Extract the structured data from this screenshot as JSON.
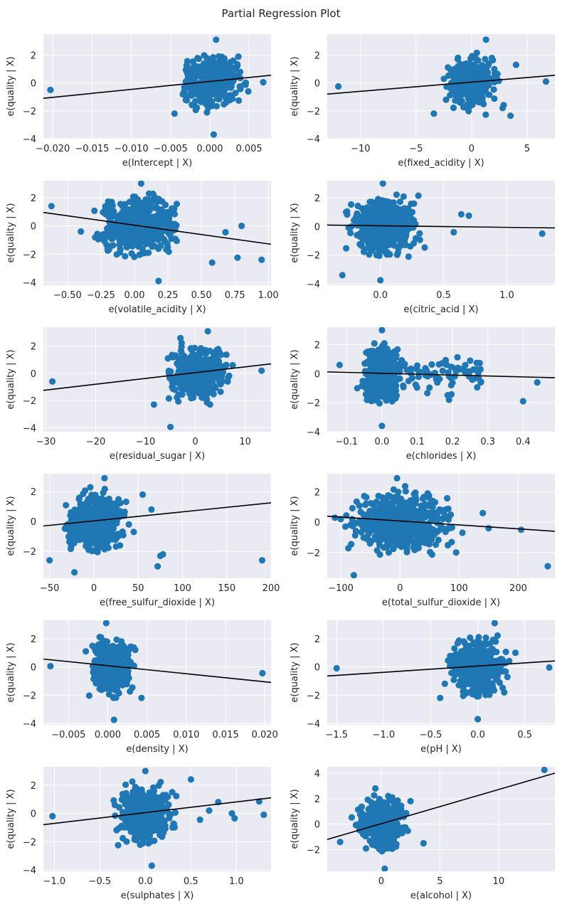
{
  "figure_title": "Partial Regression Plot",
  "colors": {
    "panel_bg": "#eaeaf2",
    "grid": "#ffffff",
    "point": "#1f77b4",
    "fit_line": "#000000",
    "text": "#262626"
  },
  "chart_data": [
    {
      "type": "scatter",
      "xlabel": "e(Intercept | X)",
      "ylabel": "e(quality | X)",
      "xlim": [
        -0.0212,
        0.0078
      ],
      "ylim": [
        -4,
        3.5
      ],
      "xticks": [
        -0.02,
        -0.015,
        -0.01,
        -0.005,
        0.0,
        0.005
      ],
      "xtick_labels": [
        "−0.020",
        "−0.015",
        "−0.010",
        "−0.005",
        "0.000",
        "0.005"
      ],
      "yticks": [
        -4,
        -2,
        0,
        2
      ],
      "ytick_labels": [
        "−4",
        "−2",
        "0",
        "2"
      ],
      "fit_line": {
        "x": [
          -0.0212,
          0.0078
        ],
        "y": [
          -1.1,
          0.55
        ]
      },
      "cluster": {
        "cx": 0.0005,
        "sx": 0.0017,
        "cy": 0,
        "sy": 0.9,
        "n": 320
      },
      "outliers": [
        [
          -0.0203,
          -0.5
        ],
        [
          0.0068,
          0.05
        ],
        [
          -0.0045,
          -2.2
        ],
        [
          -0.0025,
          0.4
        ],
        [
          0.003,
          1.6
        ],
        [
          0.0005,
          -3.7
        ],
        [
          0.0008,
          3.1
        ]
      ]
    },
    {
      "type": "scatter",
      "xlabel": "e(fixed_acidity | X)",
      "ylabel": "e(quality | X)",
      "xlim": [
        -13,
        7.5
      ],
      "ylim": [
        -4,
        3.5
      ],
      "xticks": [
        -10,
        -5,
        0,
        5
      ],
      "xtick_labels": [
        "−10",
        "−5",
        "0",
        "5"
      ],
      "yticks": [
        -4,
        -2,
        0,
        2
      ],
      "ytick_labels": [
        "−4",
        "−2",
        "0",
        "2"
      ],
      "fit_line": {
        "x": [
          -13,
          7.5
        ],
        "y": [
          -0.8,
          0.55
        ]
      },
      "cluster": {
        "cx": 0,
        "sx": 1.0,
        "cy": 0,
        "sy": 0.9,
        "n": 320
      },
      "outliers": [
        [
          -12,
          -0.25
        ],
        [
          6.7,
          0.1
        ],
        [
          4,
          1.3
        ],
        [
          -3.4,
          -2.2
        ],
        [
          3.5,
          -2.35
        ],
        [
          2.8,
          -1.8
        ],
        [
          1.3,
          3.1
        ]
      ]
    },
    {
      "type": "scatter",
      "xlabel": "e(volatile_acidity | X)",
      "ylabel": "e(quality | X)",
      "xlim": [
        -0.68,
        1.02
      ],
      "ylim": [
        -4.2,
        3.2
      ],
      "xticks": [
        -0.5,
        -0.25,
        0.0,
        0.25,
        0.5,
        0.75,
        1.0
      ],
      "xtick_labels": [
        "−0.50",
        "−0.25",
        "0.00",
        "0.25",
        "0.50",
        "0.75",
        "1.00"
      ],
      "yticks": [
        -4,
        -2,
        0,
        2
      ],
      "ytick_labels": [
        "−4",
        "−2",
        "0",
        "2"
      ],
      "fit_line": {
        "x": [
          -0.68,
          1.02
        ],
        "y": [
          0.95,
          -1.3
        ]
      },
      "cluster": {
        "cx": 0.02,
        "sx": 0.13,
        "cy": 0,
        "sy": 0.9,
        "n": 480
      },
      "outliers": [
        [
          -0.62,
          1.4
        ],
        [
          0.95,
          -2.4
        ],
        [
          0.77,
          -2.25
        ],
        [
          0.8,
          0.0
        ],
        [
          0.58,
          -2.6
        ],
        [
          0.68,
          -0.45
        ],
        [
          -0.4,
          -0.4
        ],
        [
          0.18,
          -3.9
        ],
        [
          0.05,
          3.0
        ]
      ]
    },
    {
      "type": "scatter",
      "xlabel": "e(citric_acid | X)",
      "ylabel": "e(quality | X)",
      "xlim": [
        -0.42,
        1.38
      ],
      "ylim": [
        -4.1,
        3.2
      ],
      "xticks": [
        0.0,
        0.5,
        1.0
      ],
      "xtick_labels": [
        "0.0",
        "0.5",
        "1.0"
      ],
      "yticks": [
        -4,
        -2,
        0,
        2
      ],
      "ytick_labels": [
        "−4",
        "−2",
        "0",
        "2"
      ],
      "fit_line": {
        "x": [
          -0.42,
          1.38
        ],
        "y": [
          0.1,
          -0.1
        ]
      },
      "cluster": {
        "cx": 0.02,
        "sx": 0.12,
        "cy": 0,
        "sy": 0.9,
        "n": 480
      },
      "outliers": [
        [
          1.28,
          -0.5
        ],
        [
          0.64,
          0.85
        ],
        [
          0.7,
          0.75
        ],
        [
          0.58,
          -0.4
        ],
        [
          -0.3,
          -3.4
        ],
        [
          0.0,
          -3.75
        ],
        [
          0.02,
          3.0
        ]
      ]
    },
    {
      "type": "scatter",
      "xlabel": "e(residual_sugar | X)",
      "ylabel": "e(quality | X)",
      "xlim": [
        -30.5,
        15.2
      ],
      "ylim": [
        -4.3,
        3.4
      ],
      "xticks": [
        -30,
        -20,
        -10,
        0,
        10
      ],
      "xtick_labels": [
        "−30",
        "−20",
        "−10",
        "0",
        "10"
      ],
      "yticks": [
        -4,
        -2,
        0,
        2
      ],
      "ytick_labels": [
        "−4",
        "−2",
        "0",
        "2"
      ],
      "fit_line": {
        "x": [
          -30.5,
          15.2
        ],
        "y": [
          -1.25,
          0.7
        ]
      },
      "cluster": {
        "cx": 0.5,
        "sx": 2.4,
        "cy": 0,
        "sy": 0.9,
        "n": 460
      },
      "outliers": [
        [
          -28.7,
          -0.6
        ],
        [
          13.3,
          0.2
        ],
        [
          -8.3,
          -2.3
        ],
        [
          -5,
          -3.95
        ],
        [
          -5.5,
          1.1
        ],
        [
          -3,
          2.6
        ],
        [
          6.5,
          -0.6
        ],
        [
          2.5,
          3.1
        ],
        [
          7.5,
          0.6
        ]
      ]
    },
    {
      "type": "scatter",
      "xlabel": "e(chlorides | X)",
      "ylabel": "e(quality | X)",
      "xlim": [
        -0.155,
        0.49
      ],
      "ylim": [
        -4,
        3.2
      ],
      "xticks": [
        -0.1,
        0.0,
        0.1,
        0.2,
        0.3,
        0.4
      ],
      "xtick_labels": [
        "−0.1",
        "0.0",
        "0.1",
        "0.2",
        "0.3",
        "0.4"
      ],
      "yticks": [
        -4,
        -2,
        0,
        2
      ],
      "ytick_labels": [
        "−4",
        "−2",
        "0",
        "2"
      ],
      "fit_line": {
        "x": [
          -0.155,
          0.49
        ],
        "y": [
          0.12,
          -0.28
        ]
      },
      "cluster": {
        "cx": 0.0,
        "sx": 0.022,
        "cy": 0,
        "sy": 0.9,
        "n": 420
      },
      "tail": {
        "x0": 0.02,
        "x1": 0.29,
        "cy": 0,
        "sy": 0.6,
        "n": 70
      },
      "outliers": [
        [
          -0.12,
          0.6
        ],
        [
          0.4,
          -1.9
        ],
        [
          0.44,
          -0.6
        ],
        [
          0.28,
          -0.6
        ],
        [
          0.25,
          0.9
        ],
        [
          -0.07,
          -1.0
        ],
        [
          0.19,
          -1.8
        ],
        [
          0.0,
          -3.6
        ],
        [
          0.0,
          3.0
        ],
        [
          0.1,
          0.55
        ]
      ]
    },
    {
      "type": "scatter",
      "xlabel": "e(free_sulfur_dioxide | X)",
      "ylabel": "e(quality | X)",
      "xlim": [
        -57,
        200
      ],
      "ylim": [
        -3.8,
        3.2
      ],
      "xticks": [
        -50,
        0,
        50,
        100,
        150,
        200
      ],
      "xtick_labels": [
        "−50",
        "0",
        "50",
        "100",
        "150",
        "200"
      ],
      "yticks": [
        -2,
        0,
        2
      ],
      "ytick_labels": [
        "−2",
        "0",
        "2"
      ],
      "fit_line": {
        "x": [
          -57,
          200
        ],
        "y": [
          -0.3,
          1.25
        ]
      },
      "cluster": {
        "cx": 2,
        "sx": 14,
        "cy": 0,
        "sy": 0.9,
        "n": 470
      },
      "outliers": [
        [
          190,
          -2.6
        ],
        [
          -50,
          -2.6
        ],
        [
          75,
          -2.3
        ],
        [
          78,
          -2.2
        ],
        [
          72,
          -3.0
        ],
        [
          55,
          1.8
        ],
        [
          65,
          0.8
        ],
        [
          45,
          -0.7
        ],
        [
          -22,
          -3.4
        ],
        [
          12,
          2.9
        ]
      ]
    },
    {
      "type": "scatter",
      "xlabel": "e(total_sulfur_dioxide | X)",
      "ylabel": "e(quality | X)",
      "xlim": [
        -123,
        262
      ],
      "ylim": [
        -3.7,
        3.2
      ],
      "xticks": [
        -100,
        0,
        100,
        200
      ],
      "xtick_labels": [
        "−100",
        "0",
        "100",
        "200"
      ],
      "yticks": [
        -2,
        0,
        2
      ],
      "ytick_labels": [
        "−2",
        "0",
        "2"
      ],
      "fit_line": {
        "x": [
          -123,
          262
        ],
        "y": [
          0.4,
          -0.6
        ]
      },
      "cluster": {
        "cx": 0,
        "sx": 38,
        "cy": 0,
        "sy": 0.9,
        "n": 500
      },
      "outliers": [
        [
          -110,
          0.3
        ],
        [
          -100,
          0.2
        ],
        [
          250,
          -2.9
        ],
        [
          205,
          -0.5
        ],
        [
          150,
          -0.4
        ],
        [
          140,
          0.6
        ],
        [
          -78,
          -3.5
        ],
        [
          -5,
          2.9
        ],
        [
          95,
          -2.0
        ]
      ]
    },
    {
      "type": "scatter",
      "xlabel": "e(density | X)",
      "ylabel": "e(quality | X)",
      "xlim": [
        -0.0082,
        0.0208
      ],
      "ylim": [
        -4.1,
        3.3
      ],
      "xticks": [
        -0.005,
        0.0,
        0.005,
        0.01,
        0.015,
        0.02
      ],
      "xtick_labels": [
        "−0.005",
        "0.000",
        "0.005",
        "0.010",
        "0.015",
        "0.020"
      ],
      "yticks": [
        -4,
        -2,
        0,
        2
      ],
      "ytick_labels": [
        "−4",
        "−2",
        "0",
        "2"
      ],
      "fit_line": {
        "x": [
          -0.0082,
          0.0208
        ],
        "y": [
          0.55,
          -1.1
        ]
      },
      "cluster": {
        "cx": 0.0005,
        "sx": 0.0012,
        "cy": 0,
        "sy": 0.9,
        "n": 420
      },
      "outliers": [
        [
          -0.0073,
          0.05
        ],
        [
          0.0197,
          -0.45
        ],
        [
          0.0043,
          -2.2
        ],
        [
          0.0035,
          1.2
        ],
        [
          0.0008,
          -3.75
        ],
        [
          -0.0002,
          3.1
        ],
        [
          -0.0028,
          1.1
        ]
      ]
    },
    {
      "type": "scatter",
      "xlabel": "e(pH | X)",
      "ylabel": "e(quality | X)",
      "xlim": [
        -1.6,
        0.82
      ],
      "ylim": [
        -4.1,
        3.3
      ],
      "xticks": [
        -1.5,
        -1.0,
        -0.5,
        0.0,
        0.5
      ],
      "xtick_labels": [
        "−1.5",
        "−1.0",
        "−0.5",
        "0.0",
        "0.5"
      ],
      "yticks": [
        -4,
        -2,
        0,
        2
      ],
      "ytick_labels": [
        "−4",
        "−2",
        "0",
        "2"
      ],
      "fit_line": {
        "x": [
          -1.6,
          0.82
        ],
        "y": [
          -0.65,
          0.42
        ]
      },
      "cluster": {
        "cx": 0.0,
        "sx": 0.13,
        "cy": 0,
        "sy": 0.9,
        "n": 450
      },
      "outliers": [
        [
          -1.5,
          -0.1
        ],
        [
          0.76,
          -0.05
        ],
        [
          -0.4,
          -2.2
        ],
        [
          0.0,
          -3.7
        ],
        [
          0.18,
          3.1
        ],
        [
          -0.35,
          -1.2
        ],
        [
          0.4,
          1.0
        ]
      ]
    },
    {
      "type": "scatter",
      "xlabel": "e(sulphates | X)",
      "ylabel": "e(quality | X)",
      "xlim": [
        -1.12,
        1.38
      ],
      "ylim": [
        -4.1,
        3.3
      ],
      "xticks": [
        -1.0,
        -0.5,
        0.0,
        0.5,
        1.0
      ],
      "xtick_labels": [
        "−1.0",
        "−0.5",
        "0.0",
        "0.5",
        "1.0"
      ],
      "yticks": [
        -4,
        -2,
        0,
        2
      ],
      "ytick_labels": [
        "−4",
        "−2",
        "0",
        "2"
      ],
      "fit_line": {
        "x": [
          -1.12,
          1.38
        ],
        "y": [
          -0.8,
          1.1
        ]
      },
      "cluster": {
        "cx": 0.0,
        "sx": 0.13,
        "cy": 0,
        "sy": 0.9,
        "n": 440
      },
      "outliers": [
        [
          -1.02,
          -0.2
        ],
        [
          1.3,
          -0.1
        ],
        [
          1.25,
          0.85
        ],
        [
          0.95,
          0.0
        ],
        [
          0.98,
          -0.35
        ],
        [
          0.8,
          0.8
        ],
        [
          0.7,
          0.2
        ],
        [
          -0.3,
          -2.25
        ],
        [
          0.5,
          2.4
        ],
        [
          0.07,
          -3.7
        ],
        [
          0.0,
          3.0
        ],
        [
          0.6,
          -0.45
        ]
      ]
    },
    {
      "type": "scatter",
      "xlabel": "e(alcohol | X)",
      "ylabel": "e(quality | X)",
      "xlim": [
        -4.6,
        14.8
      ],
      "ylim": [
        -3.7,
        4.5
      ],
      "xticks": [
        0,
        5,
        10
      ],
      "xtick_labels": [
        "0",
        "5",
        "10"
      ],
      "yticks": [
        -2,
        0,
        2,
        4
      ],
      "ytick_labels": [
        "−2",
        "0",
        "2",
        "4"
      ],
      "fit_line": {
        "x": [
          -4.6,
          14.8
        ],
        "y": [
          -1.2,
          4.0
        ]
      },
      "cluster": {
        "cx": 0.0,
        "sx": 0.9,
        "cy": 0,
        "sy": 0.95,
        "n": 420
      },
      "outliers": [
        [
          13.9,
          4.25
        ],
        [
          -3.5,
          -1.4
        ],
        [
          3.6,
          -1.5
        ],
        [
          2.5,
          1.8
        ],
        [
          -0.5,
          2.8
        ],
        [
          0.3,
          -3.5
        ]
      ]
    }
  ]
}
